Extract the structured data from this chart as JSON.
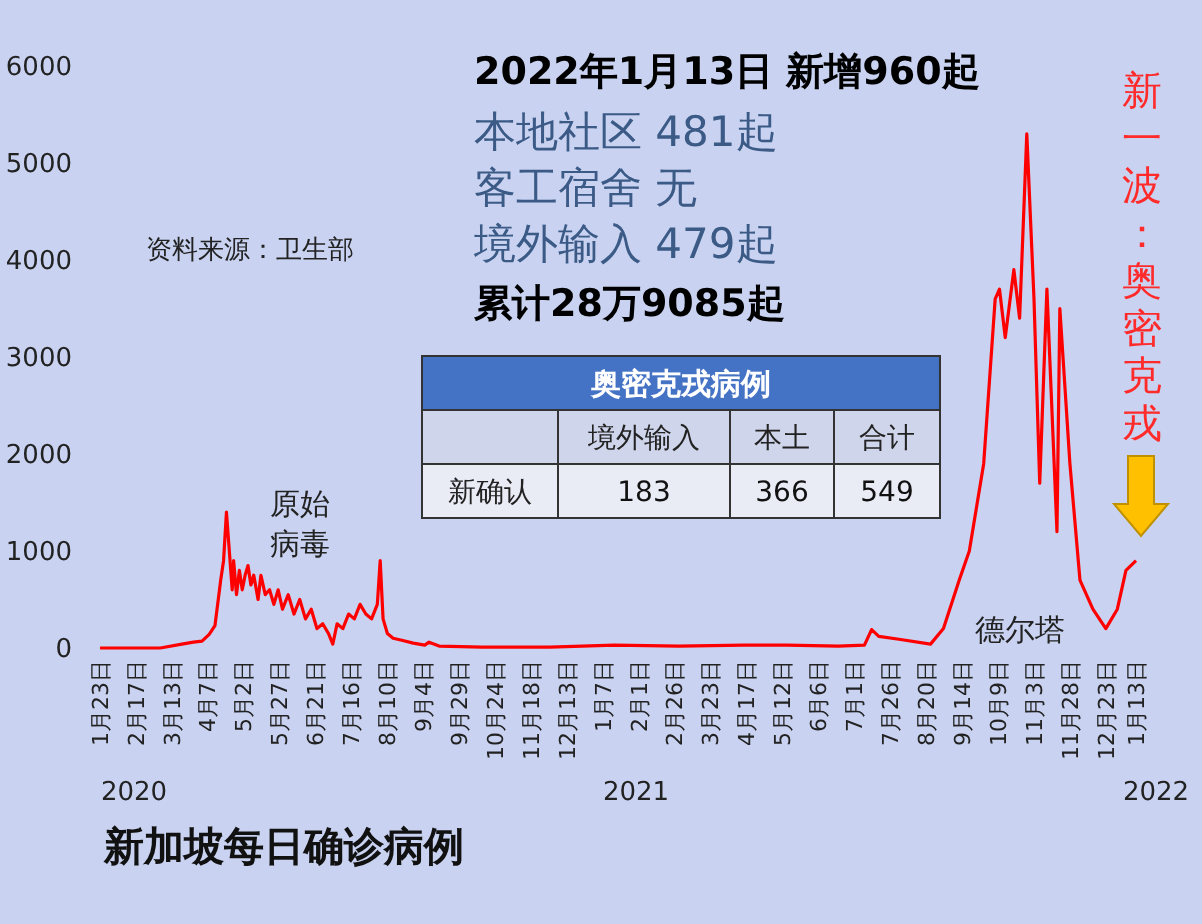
{
  "chart_data": [
    {
      "type": "line",
      "title": "新加坡每日确诊病例",
      "annotations": [
        "2022年1月13日 新增960起",
        "本地社区 481起",
        "客工宿舍 无",
        "境外输入 479起",
        "累计28万9085起",
        "资料来源：卫生部",
        "原始病毒",
        "德尔塔",
        "新一波：奥密克戎",
        "2020",
        "2021",
        "2022"
      ],
      "xlim": [
        "2020-01-23",
        "2022-01-13"
      ],
      "xticks": [
        {
          "value": "2020-01-23",
          "label": "1月23日"
        },
        {
          "value": "2020-02-17",
          "label": "2月17日"
        },
        {
          "value": "2020-03-13",
          "label": "3月13日"
        },
        {
          "value": "2020-04-07",
          "label": "4月7日"
        },
        {
          "value": "2020-05-02",
          "label": "5月2日"
        },
        {
          "value": "2020-05-27",
          "label": "5月27日"
        },
        {
          "value": "2020-06-21",
          "label": "6月21日"
        },
        {
          "value": "2020-07-16",
          "label": "7月16日"
        },
        {
          "value": "2020-08-10",
          "label": "8月10日"
        },
        {
          "value": "2020-09-04",
          "label": "9月4日"
        },
        {
          "value": "2020-09-29",
          "label": "9月29日"
        },
        {
          "value": "2020-10-24",
          "label": "10月24日"
        },
        {
          "value": "2020-11-18",
          "label": "11月18日"
        },
        {
          "value": "2020-12-13",
          "label": "12月13日"
        },
        {
          "value": "2021-01-07",
          "label": "1月7日"
        },
        {
          "value": "2021-02-01",
          "label": "2月1日"
        },
        {
          "value": "2021-02-26",
          "label": "2月26日"
        },
        {
          "value": "2021-03-23",
          "label": "3月23日"
        },
        {
          "value": "2021-04-17",
          "label": "4月17日"
        },
        {
          "value": "2021-05-12",
          "label": "5月12日"
        },
        {
          "value": "2021-06-06",
          "label": "6月6日"
        },
        {
          "value": "2021-07-01",
          "label": "7月1日"
        },
        {
          "value": "2021-07-26",
          "label": "7月26日"
        },
        {
          "value": "2021-08-20",
          "label": "8月20日"
        },
        {
          "value": "2021-09-14",
          "label": "9月14日"
        },
        {
          "value": "2021-10-09",
          "label": "10月9日"
        },
        {
          "value": "2021-11-03",
          "label": "11月3日"
        },
        {
          "value": "2021-11-28",
          "label": "11月28日"
        },
        {
          "value": "2021-12-23",
          "label": "12月23日"
        },
        {
          "value": "2022-01-13",
          "label": "1月13日"
        }
      ],
      "ylim": [
        0,
        6000
      ],
      "yticks": [
        0,
        1000,
        2000,
        3000,
        4000,
        5000,
        6000
      ],
      "series": [
        {
          "color": "#ff0000",
          "x": [
            "2020-01-23",
            "2020-02-15",
            "2020-03-05",
            "2020-03-20",
            "2020-03-28",
            "2020-04-03",
            "2020-04-08",
            "2020-04-12",
            "2020-04-16",
            "2020-04-18",
            "2020-04-20",
            "2020-04-22",
            "2020-04-24",
            "2020-04-25",
            "2020-04-27",
            "2020-04-29",
            "2020-05-01",
            "2020-05-03",
            "2020-05-05",
            "2020-05-07",
            "2020-05-09",
            "2020-05-12",
            "2020-05-14",
            "2020-05-17",
            "2020-05-20",
            "2020-05-23",
            "2020-05-26",
            "2020-05-29",
            "2020-06-02",
            "2020-06-06",
            "2020-06-10",
            "2020-06-14",
            "2020-06-18",
            "2020-06-22",
            "2020-06-26",
            "2020-06-30",
            "2020-07-03",
            "2020-07-06",
            "2020-07-10",
            "2020-07-14",
            "2020-07-18",
            "2020-07-22",
            "2020-07-26",
            "2020-07-30",
            "2020-08-03",
            "2020-08-05",
            "2020-08-07",
            "2020-08-10",
            "2020-08-14",
            "2020-08-20",
            "2020-08-28",
            "2020-09-05",
            "2020-09-08",
            "2020-09-15",
            "2020-10-15",
            "2020-12-01",
            "2021-01-15",
            "2021-03-01",
            "2021-04-15",
            "2021-05-15",
            "2021-06-20",
            "2021-07-08",
            "2021-07-13",
            "2021-07-18",
            "2021-08-01",
            "2021-08-23",
            "2021-09-01",
            "2021-09-12",
            "2021-09-19",
            "2021-09-29",
            "2021-10-07",
            "2021-10-10",
            "2021-10-14",
            "2021-10-20",
            "2021-10-24",
            "2021-10-29",
            "2021-11-03",
            "2021-11-07",
            "2021-11-12",
            "2021-11-19",
            "2021-11-21",
            "2021-11-28",
            "2021-12-05",
            "2021-12-14",
            "2021-12-23",
            "2021-12-31",
            "2022-01-06",
            "2022-01-13"
          ],
          "values": [
            0,
            0,
            0,
            40,
            60,
            70,
            140,
            230,
            700,
            900,
            1400,
            1000,
            600,
            900,
            550,
            800,
            600,
            750,
            850,
            650,
            750,
            500,
            750,
            550,
            600,
            450,
            600,
            400,
            550,
            350,
            500,
            300,
            400,
            200,
            250,
            150,
            40,
            250,
            200,
            350,
            300,
            450,
            350,
            300,
            450,
            900,
            300,
            150,
            100,
            80,
            50,
            30,
            60,
            20,
            10,
            10,
            30,
            20,
            30,
            30,
            20,
            30,
            190,
            120,
            90,
            40,
            200,
            700,
            1000,
            1900,
            3600,
            3700,
            3200,
            3900,
            3400,
            5300,
            3600,
            1700,
            3700,
            1200,
            3500,
            1900,
            700,
            400,
            200,
            400,
            800,
            900
          ]
        }
      ]
    },
    {
      "type": "other",
      "title": "奥密克戎病例",
      "categories": [
        "境外输入",
        "本土",
        "合计"
      ],
      "y_categories": [
        "新确认"
      ],
      "values": [
        183,
        366,
        549
      ],
      "data_labels": true
    }
  ]
}
